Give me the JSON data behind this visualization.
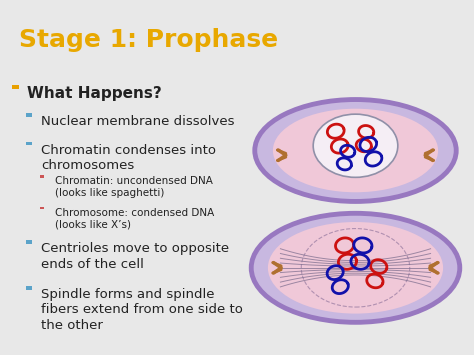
{
  "title": "Stage 1: Prophase",
  "title_color": "#E8A800",
  "title_bg": "#000000",
  "body_bg": "#E8E8E8",
  "text_color": "#222222",
  "small_text_color": "#333333",
  "bullets": [
    {
      "level": 0,
      "text": "What Happens?",
      "marker_color": "#E8A000",
      "fontsize": 11,
      "bold": true
    },
    {
      "level": 1,
      "text": "Nuclear membrane dissolves",
      "marker_color": "#5BA3C9",
      "fontsize": 9.5,
      "bold": false
    },
    {
      "level": 1,
      "text": "Chromatin condenses into\nchromosomes",
      "marker_color": "#5BA3C9",
      "fontsize": 9.5,
      "bold": false
    },
    {
      "level": 2,
      "text": "Chromatin: uncondensed DNA\n(looks like spaghetti)",
      "marker_color": "#CC5555",
      "fontsize": 7.5,
      "bold": false
    },
    {
      "level": 2,
      "text": "Chromosome: condensed DNA\n(looks like X’s)",
      "marker_color": "#CC5555",
      "fontsize": 7.5,
      "bold": false
    },
    {
      "level": 1,
      "text": "Centrioles move to opposite\nends of the cell",
      "marker_color": "#5BA3C9",
      "fontsize": 9.5,
      "bold": false
    },
    {
      "level": 1,
      "text": "Spindle forms and spindle\nfibers extend from one side to\nthe other",
      "marker_color": "#5BA3C9",
      "fontsize": 9.5,
      "bold": false
    }
  ],
  "cell_outer_color": "#C8B8E0",
  "cell_outer_edge": "#9878C0",
  "cell_inner_color": "#F0C8D8",
  "cell_inner_edge": "#C09898",
  "nucleus_color": "#F8E8F0",
  "nucleus_edge": "#A090A0",
  "red_chrom": "#CC1111",
  "blue_chrom": "#1111AA",
  "centriole_color": "#B07030",
  "spindle_color": "#806080"
}
